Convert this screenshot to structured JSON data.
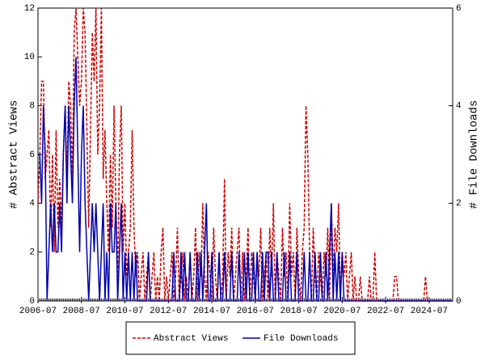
{
  "chart_data": {
    "type": "line",
    "categories": [
      "2006-07",
      null,
      null,
      null,
      null,
      null,
      null,
      null,
      null,
      null,
      null,
      null,
      null,
      null,
      null,
      null,
      null,
      null,
      null,
      null,
      null,
      null,
      null,
      null,
      "2008-07",
      null,
      null,
      null,
      null,
      null,
      null,
      null,
      null,
      null,
      null,
      null,
      null,
      null,
      null,
      null,
      null,
      null,
      null,
      null,
      null,
      null,
      null,
      null,
      "2010-07",
      null,
      null,
      null,
      null,
      null,
      null,
      null,
      null,
      null,
      null,
      null,
      null,
      null,
      null,
      null,
      null,
      null,
      null,
      null,
      null,
      null,
      null,
      null,
      "2012-07",
      null,
      null,
      null,
      null,
      null,
      null,
      null,
      null,
      null,
      null,
      null,
      null,
      null,
      null,
      null,
      null,
      null,
      null,
      null,
      null,
      null,
      null,
      null,
      "2014-07",
      null,
      null,
      null,
      null,
      null,
      null,
      null,
      null,
      null,
      null,
      null,
      null,
      null,
      null,
      null,
      null,
      null,
      null,
      null,
      null,
      null,
      null,
      null,
      "2016-07",
      null,
      null,
      null,
      null,
      null,
      null,
      null,
      null,
      null,
      null,
      null,
      null,
      null,
      null,
      null,
      null,
      null,
      null,
      null,
      null,
      null,
      null,
      null,
      "2018-07",
      null,
      null,
      null,
      null,
      null,
      null,
      null,
      null,
      null,
      null,
      null,
      null,
      null,
      null,
      null,
      null,
      null,
      null,
      null,
      null,
      null,
      null,
      null,
      "2020-07",
      null,
      null,
      null,
      null,
      null,
      null,
      null,
      null,
      null,
      null,
      null,
      null,
      null,
      null,
      null,
      null,
      null,
      null,
      null,
      null,
      null,
      null,
      null,
      "2022-07",
      null,
      null,
      null,
      null,
      null,
      null,
      null,
      null,
      null,
      null,
      null,
      null,
      null,
      null,
      null,
      null,
      null,
      null,
      null,
      null,
      null,
      null,
      null,
      "2024-07",
      null,
      null,
      null,
      null,
      null,
      null,
      null,
      null,
      null,
      null,
      null,
      null,
      null
    ],
    "series": [
      {
        "name": "Abstract Views",
        "color": "#cc0000",
        "axis": "y",
        "dash": true,
        "values": [
          4,
          6,
          9,
          9,
          5,
          6,
          7,
          3,
          6,
          2,
          7,
          3,
          5,
          3,
          6,
          8,
          5,
          9,
          8,
          5,
          11,
          12,
          10,
          8,
          9,
          12,
          11,
          7,
          3,
          7,
          11,
          9,
          12,
          6,
          8,
          12,
          5,
          7,
          4,
          2,
          6,
          3,
          8,
          4,
          1,
          6,
          8,
          2,
          4,
          1,
          2,
          3,
          7,
          3,
          1,
          2,
          0,
          1,
          2,
          0,
          1,
          2,
          0,
          1,
          2,
          0,
          1,
          0,
          2,
          3,
          0,
          1,
          0,
          1,
          2,
          0,
          1,
          3,
          0,
          1,
          2,
          0,
          1,
          0,
          2,
          0,
          1,
          3,
          0,
          2,
          1,
          4,
          1,
          0,
          2,
          1,
          0,
          3,
          1,
          0,
          2,
          0,
          1,
          5,
          0,
          2,
          1,
          3,
          0,
          1,
          2,
          3,
          0,
          2,
          0,
          1,
          3,
          0,
          2,
          1,
          0,
          2,
          1,
          3,
          0,
          1,
          2,
          0,
          3,
          1,
          4,
          0,
          2,
          1,
          0,
          3,
          1,
          2,
          0,
          4,
          1,
          2,
          0,
          3,
          1,
          0,
          2,
          3,
          8,
          6,
          2,
          0,
          3,
          1,
          0,
          2,
          1,
          0,
          2,
          1,
          3,
          0,
          4,
          1,
          3,
          2,
          4,
          0,
          2,
          1,
          2,
          0,
          1,
          2,
          0,
          1,
          0,
          0,
          1,
          0,
          0,
          0,
          0,
          1,
          0,
          0,
          2,
          0,
          0,
          0,
          0,
          0,
          0,
          0,
          0,
          0,
          0,
          1,
          1,
          0,
          0,
          0,
          0,
          0,
          0,
          0,
          0,
          0,
          0,
          0,
          0,
          0,
          0,
          0,
          1,
          0,
          0,
          0,
          0,
          0,
          0,
          0,
          0,
          0,
          0,
          0,
          0,
          0,
          0,
          0
        ]
      },
      {
        "name": "File Downloads",
        "color": "#0000aa",
        "axis": "y2",
        "dash": false,
        "values": [
          3,
          3,
          2,
          4,
          3,
          0,
          1,
          2,
          1,
          2,
          1,
          1,
          2,
          1,
          3,
          4,
          2,
          4,
          3,
          2,
          4,
          5,
          3,
          1,
          3,
          4,
          2,
          1,
          0,
          1,
          2,
          1,
          2,
          1,
          0,
          1,
          2,
          0,
          1,
          0,
          2,
          1,
          1,
          2,
          0,
          1,
          2,
          0,
          1,
          0,
          1,
          0,
          1,
          0,
          1,
          0,
          0,
          0,
          0,
          0,
          0,
          1,
          0,
          0,
          0,
          0,
          0,
          0,
          0,
          0,
          0,
          0,
          0,
          0,
          0,
          1,
          0,
          0,
          0,
          1,
          0,
          1,
          0,
          0,
          1,
          0,
          0,
          0,
          1,
          0,
          1,
          0,
          1,
          2,
          0,
          0,
          1,
          0,
          0,
          0,
          1,
          0,
          0,
          1,
          0,
          0,
          0,
          1,
          0,
          0,
          0,
          1,
          0,
          0,
          1,
          0,
          1,
          0,
          0,
          1,
          0,
          1,
          0,
          0,
          1,
          0,
          1,
          1,
          0,
          1,
          0,
          0,
          1,
          0,
          0,
          0,
          1,
          0,
          0,
          1,
          0,
          0,
          0,
          1,
          0,
          0,
          0,
          1,
          0,
          0,
          1,
          0,
          0,
          1,
          0,
          0,
          1,
          0,
          0,
          1,
          0,
          1,
          2,
          0,
          1,
          0,
          1,
          0,
          1,
          0,
          0,
          0,
          0,
          0,
          0,
          0,
          0,
          0,
          0,
          0,
          0,
          0,
          0,
          0,
          0,
          0,
          0,
          0,
          0,
          0,
          0,
          0,
          0,
          0,
          0,
          0,
          0,
          0,
          0,
          0,
          0,
          0,
          0,
          0,
          0,
          0,
          0,
          0,
          0,
          0,
          0,
          0,
          0,
          0,
          0,
          0,
          0,
          0,
          0,
          0,
          0,
          0,
          0,
          0,
          0,
          0,
          0,
          0,
          0,
          0
        ]
      }
    ],
    "ylabel": "# Abstract Views",
    "y2label": "# File Downloads",
    "ylim": [
      0,
      12
    ],
    "yticks": [
      0,
      2,
      4,
      6,
      8,
      10,
      12
    ],
    "y2lim": [
      0,
      6
    ],
    "y2ticks": [
      0,
      2,
      4,
      6
    ],
    "legend": "bottom"
  }
}
